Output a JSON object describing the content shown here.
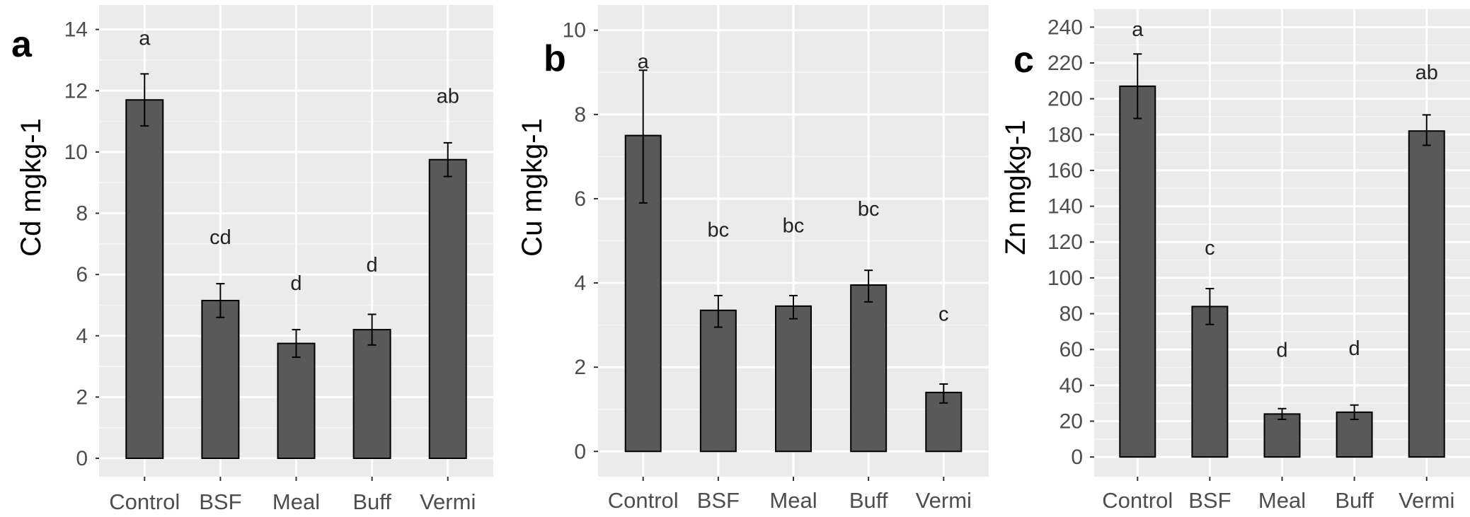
{
  "colors": {
    "panel_bg": "#ebebeb",
    "grid_major": "#ffffff",
    "grid_minor": "#f5f5f5",
    "bar_fill": "#595959",
    "bar_edge": "#000000",
    "error_bar": "#000000",
    "text": "#4d4d4d"
  },
  "chart_data": [
    {
      "type": "bar",
      "panel_label": "a",
      "categories": [
        "Control",
        "BSF",
        "Meal",
        "Buff",
        "Vermi"
      ],
      "values": [
        11.7,
        5.15,
        3.75,
        4.2,
        9.75
      ],
      "error_low": [
        10.85,
        4.6,
        3.3,
        3.7,
        9.2
      ],
      "error_high": [
        12.55,
        5.7,
        4.2,
        4.7,
        10.3
      ],
      "significance": [
        "a",
        "cd",
        "d",
        "d",
        "ab"
      ],
      "significance_y": [
        13.5,
        7.0,
        5.5,
        6.1,
        11.6
      ],
      "ylabel": "Cd mgkg-1",
      "xlabel": "",
      "ylim": [
        -0.6,
        14.8
      ],
      "yticks": [
        0,
        2,
        4,
        6,
        8,
        10,
        12,
        14
      ],
      "ytick_labels": [
        "0",
        "2",
        "4",
        "6",
        "8",
        "10",
        "12",
        "14"
      ],
      "grid": true,
      "legend": "none"
    },
    {
      "type": "bar",
      "panel_label": "b",
      "categories": [
        "Control",
        "BSF",
        "Meal",
        "Buff",
        "Vermi"
      ],
      "values": [
        7.5,
        3.35,
        3.45,
        3.95,
        1.4
      ],
      "error_low": [
        5.9,
        2.95,
        3.15,
        3.55,
        1.15
      ],
      "error_high": [
        9.05,
        3.7,
        3.7,
        4.3,
        1.6
      ],
      "significance": [
        "a",
        "bc",
        "bc",
        "bc",
        "c"
      ],
      "significance_y": [
        9.1,
        5.1,
        5.2,
        5.6,
        3.1
      ],
      "ylabel": "Cu mgkg-1",
      "xlabel": "",
      "ylim": [
        -0.6,
        10.6
      ],
      "yticks": [
        0,
        2,
        4,
        6,
        8,
        10
      ],
      "ytick_labels": [
        "0",
        "2",
        "4",
        "6",
        "8",
        "10"
      ],
      "grid": true,
      "legend": "none"
    },
    {
      "type": "bar",
      "panel_label": "c",
      "categories": [
        "Control",
        "BSF",
        "Meal",
        "Buff",
        "Vermi"
      ],
      "values": [
        207,
        84,
        24,
        25,
        182
      ],
      "error_low": [
        189,
        74,
        21,
        21,
        174
      ],
      "error_high": [
        225,
        94,
        27,
        29,
        191
      ],
      "significance": [
        "a",
        "c",
        "d",
        "d",
        "ab"
      ],
      "significance_y": [
        235,
        113,
        56,
        57,
        211
      ],
      "ylabel": "Zn mgkg-1",
      "xlabel": "",
      "ylim": [
        -11,
        250
      ],
      "yticks": [
        0,
        20,
        40,
        60,
        80,
        100,
        120,
        140,
        160,
        180,
        200,
        220,
        240
      ],
      "ytick_labels": [
        "0",
        "20",
        "40",
        "60",
        "80",
        "100",
        "120",
        "140",
        "160",
        "180",
        "200",
        "220",
        "240"
      ],
      "grid": true,
      "legend": "none"
    }
  ]
}
